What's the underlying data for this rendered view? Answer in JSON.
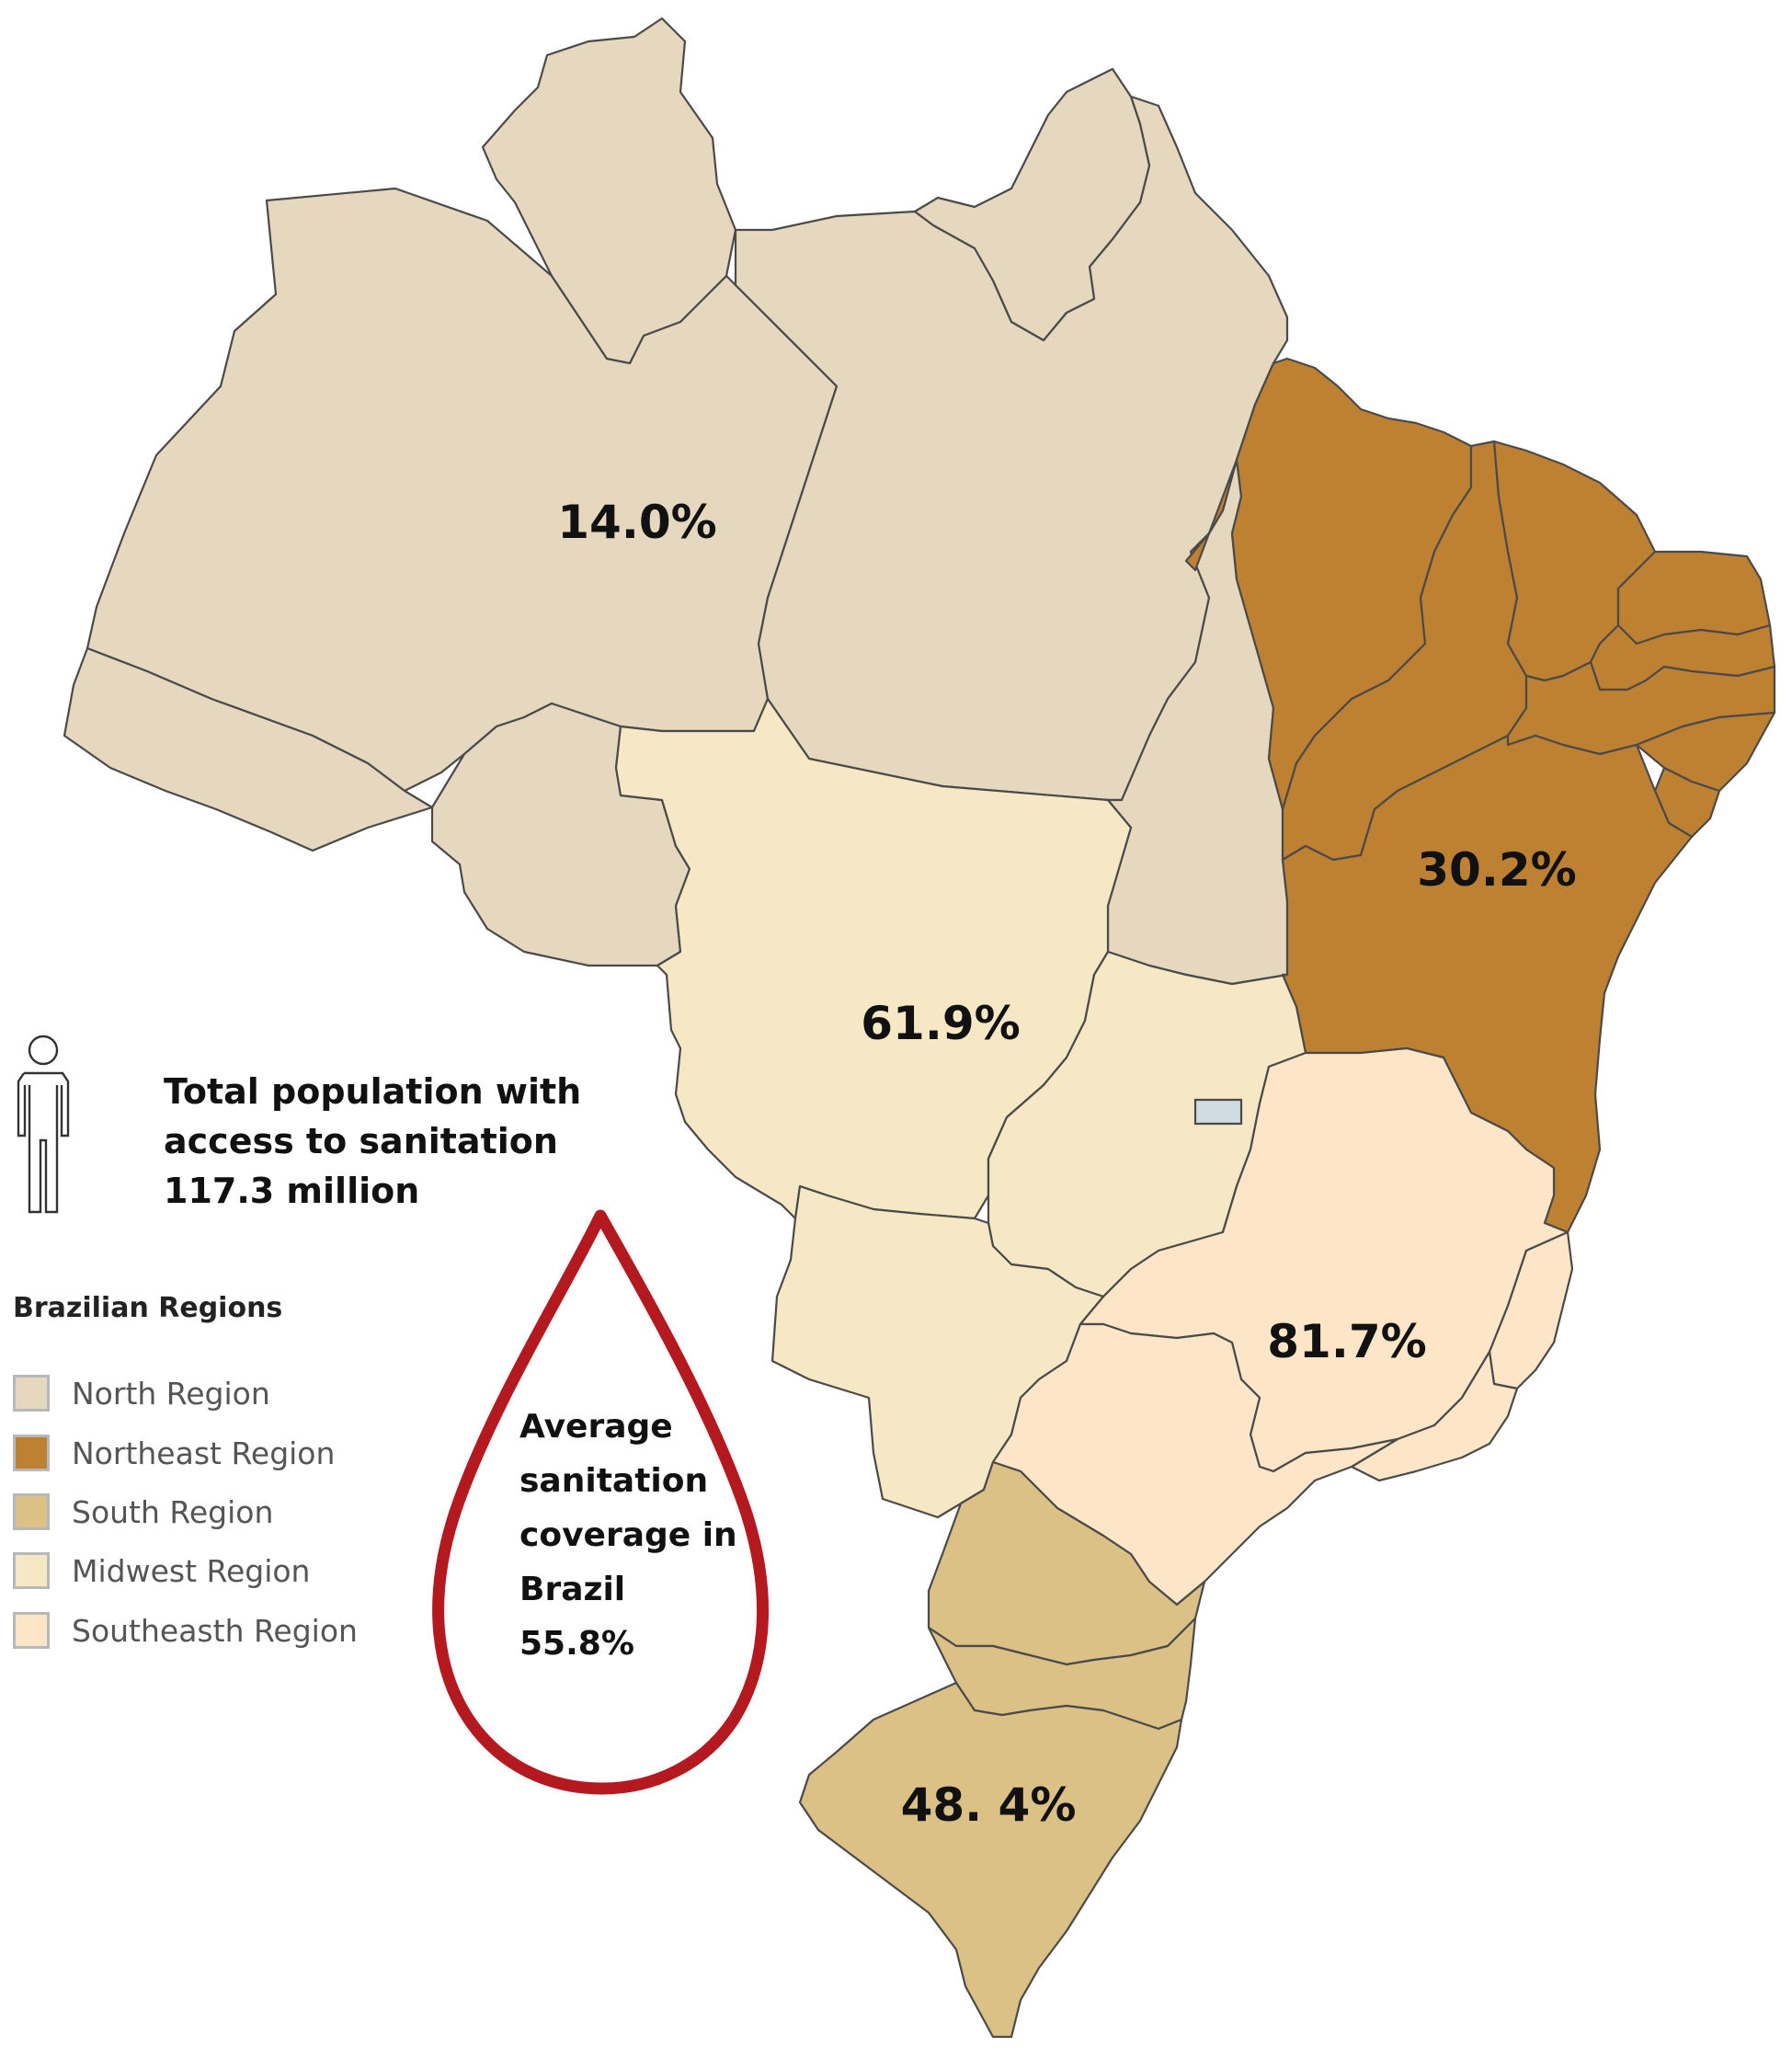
{
  "map": {
    "regions": [
      {
        "key": "north",
        "value": "14.0%",
        "color": "#e5d8bf"
      },
      {
        "key": "northeast",
        "value": "30.2%",
        "color": "#be8132"
      },
      {
        "key": "midwest",
        "value": "61.9%",
        "color": "#f6e8c5"
      },
      {
        "key": "southeast",
        "value": "81.7%",
        "color": "#fde6c7"
      },
      {
        "key": "south",
        "value": "48. 4%",
        "color": "#dcc187"
      }
    ],
    "federal_district_color": "#d1dbe2",
    "outline_color": "#4a4a4a"
  },
  "population": {
    "line1": "Total population with",
    "line2": "access to sanitation",
    "line3": "117.3 million",
    "icon": "person-icon"
  },
  "legend": {
    "title": "Brazilian Regions",
    "items": [
      {
        "label": "North Region",
        "color": "#e5d8bf"
      },
      {
        "label": "Northeast Region",
        "color": "#be8132"
      },
      {
        "label": "South Region",
        "color": "#dcc187"
      },
      {
        "label": "Midwest Region",
        "color": "#f6e8c5"
      },
      {
        "label": "Southeasth Region",
        "color": "#fde6c7"
      }
    ]
  },
  "drop": {
    "icon": "water-drop-icon",
    "stroke_color": "#b3191f",
    "line1": "Average",
    "line2": "sanitation",
    "line3": "coverage in",
    "line4": "Brazil",
    "line5": "55.8%"
  }
}
